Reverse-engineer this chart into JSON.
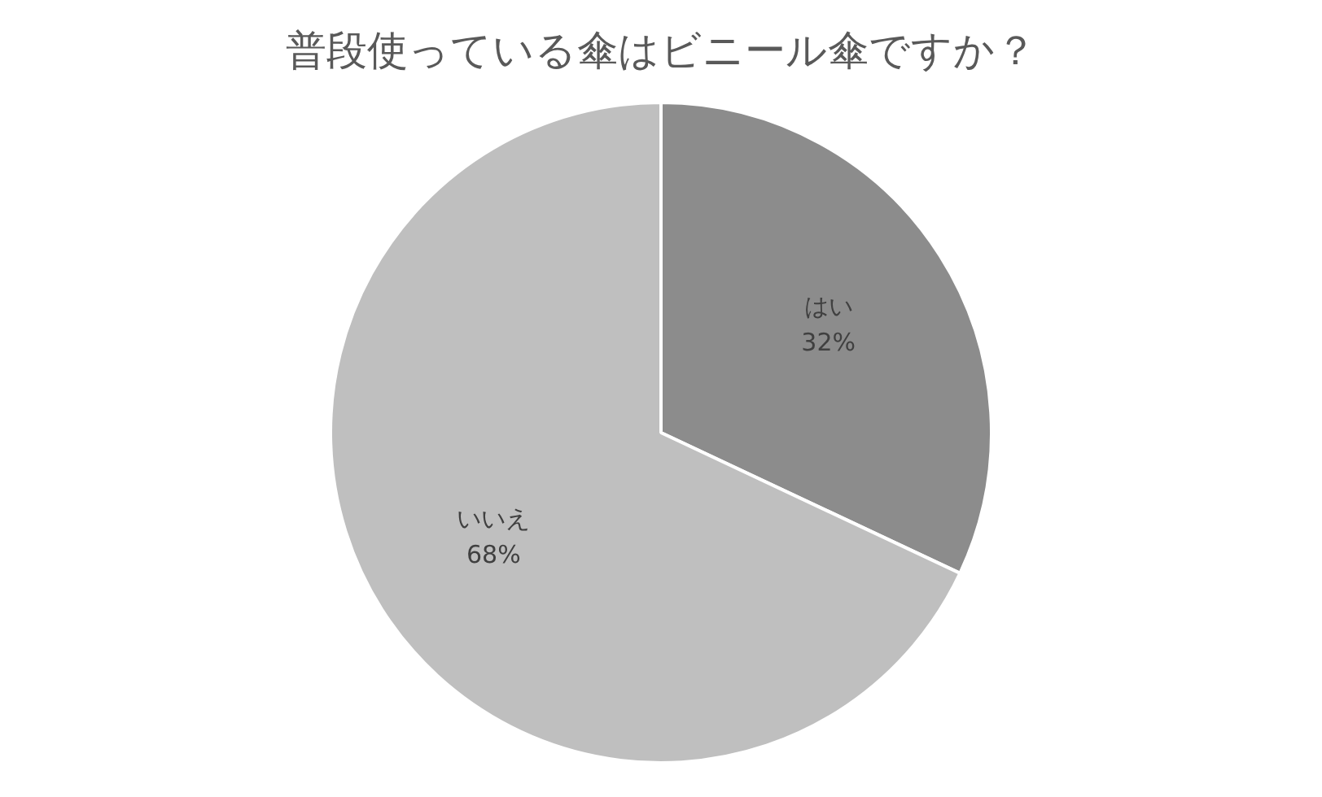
{
  "chart_data": {
    "type": "pie",
    "title": "普段使っている傘はビニール傘ですか？",
    "categories": [
      "はい",
      "いいえ"
    ],
    "values": [
      32,
      68
    ],
    "value_labels": [
      "32%",
      "68%"
    ],
    "colors": [
      "#8c8c8c",
      "#bfbfbf"
    ],
    "legend": false
  }
}
